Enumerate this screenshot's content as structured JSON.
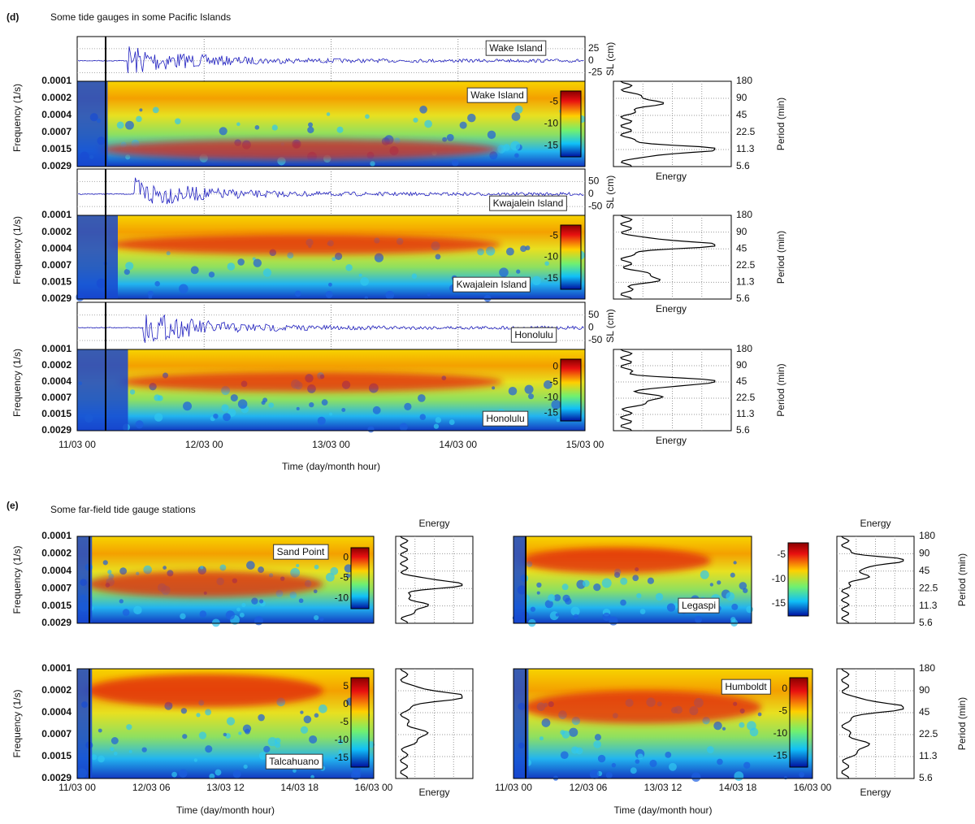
{
  "panel_d": {
    "label": "(d)",
    "title": "Some tide gauges in some Pacific Islands",
    "freq_axis_label": "Frequency (1/s)",
    "freq_ticks": [
      "0.0001",
      "0.0002",
      "0.0004",
      "0.0007",
      "0.0015",
      "0.0029"
    ],
    "period_axis_label": "Period (min)",
    "period_ticks": [
      "180",
      "90",
      "45",
      "22.5",
      "11.3",
      "5.6"
    ],
    "energy_label": "Energy",
    "sl_axis_label": "SL (cm)",
    "time_ticks": [
      "11/03 00",
      "12/03 00",
      "13/03 00",
      "14/03 00",
      "15/03 00"
    ],
    "time_axis_label": "Time (day/month hour)",
    "stations": [
      {
        "name": "Wake Island",
        "sl_ticks": [
          "25",
          "0",
          "-25"
        ],
        "colorbar_ticks": [
          "-5",
          "-10",
          "-15"
        ]
      },
      {
        "name": "Kwajalein Island",
        "sl_ticks": [
          "50",
          "0",
          "-50"
        ],
        "colorbar_ticks": [
          "-5",
          "-10",
          "-15"
        ]
      },
      {
        "name": "Honolulu",
        "sl_ticks": [
          "50",
          "0",
          "-50"
        ],
        "colorbar_ticks": [
          "0",
          "-5",
          "-10",
          "-15"
        ]
      }
    ]
  },
  "panel_e": {
    "label": "(e)",
    "title": "Some far-field tide gauge stations",
    "freq_axis_label": "Frequency (1/s)",
    "freq_ticks": [
      "0.0001",
      "0.0002",
      "0.0004",
      "0.0007",
      "0.0015",
      "0.0029"
    ],
    "period_axis_label": "Period (min)",
    "period_ticks": [
      "180",
      "90",
      "45",
      "22.5",
      "11.3",
      "5.6"
    ],
    "energy_label": "Energy",
    "time_ticks": [
      "11/03 00",
      "12/03 06",
      "13/03 12",
      "14/03 18",
      "16/03 00"
    ],
    "time_axis_label": "Time (day/month hour)",
    "stations": [
      {
        "name": "Sand Point",
        "colorbar_ticks": [
          "0",
          "-5",
          "-10"
        ]
      },
      {
        "name": "Legaspi",
        "colorbar_ticks": [
          "-5",
          "-10",
          "-15"
        ]
      },
      {
        "name": "Talcahuano",
        "colorbar_ticks": [
          "5",
          "0",
          "-5",
          "-10",
          "-15"
        ]
      },
      {
        "name": "Humboldt",
        "colorbar_ticks": [
          "0",
          "-5",
          "-10",
          "-15"
        ]
      }
    ]
  }
}
